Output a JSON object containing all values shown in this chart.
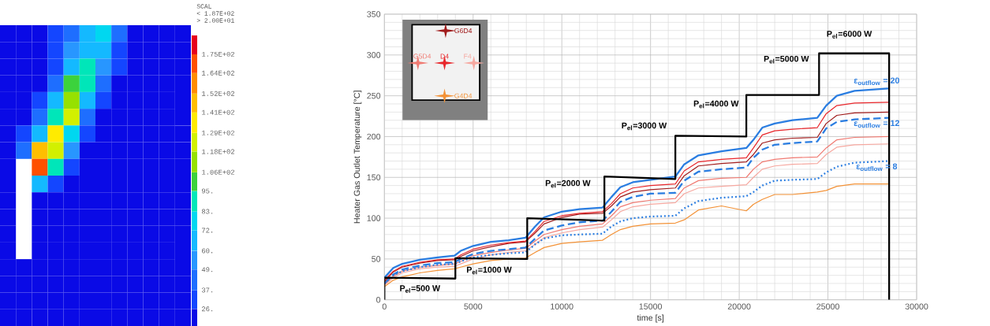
{
  "chart_data": [
    {
      "type": "heatmap",
      "clabel": "SCAL",
      "annotations": [
        "< 1.87E+02",
        "> 2.00E+01"
      ],
      "categories": [
        null,
        null,
        null,
        null,
        null,
        null,
        null,
        null,
        null,
        null,
        null,
        null
      ],
      "y_categories": [
        null,
        null,
        null,
        null,
        null,
        null,
        null,
        null,
        null,
        null,
        null,
        null,
        null,
        null,
        null,
        null,
        null,
        null
      ],
      "cells": [
        [
          20,
          20,
          20,
          28,
          40,
          60,
          72,
          40,
          20,
          20,
          20,
          20
        ],
        [
          20,
          20,
          20,
          30,
          50,
          70,
          60,
          35,
          20,
          20,
          20,
          20
        ],
        [
          20,
          20,
          20,
          35,
          60,
          90,
          55,
          30,
          20,
          20,
          20,
          20
        ],
        [
          20,
          20,
          25,
          45,
          95,
          85,
          45,
          25,
          20,
          20,
          20,
          20
        ],
        [
          20,
          20,
          35,
          60,
          115,
          60,
          30,
          20,
          20,
          20,
          20,
          20
        ],
        [
          20,
          20,
          45,
          90,
          120,
          45,
          25,
          20,
          20,
          20,
          20,
          20
        ],
        [
          20,
          30,
          70,
          135,
          80,
          30,
          20,
          20,
          20,
          20,
          20,
          20
        ],
        [
          20,
          45,
          150,
          120,
          50,
          25,
          20,
          20,
          20,
          20,
          20,
          20
        ],
        [
          20,
          null,
          170,
          90,
          35,
          20,
          20,
          20,
          20,
          20,
          20,
          20
        ],
        [
          20,
          null,
          60,
          30,
          20,
          20,
          20,
          20,
          20,
          20,
          20,
          20
        ],
        [
          20,
          null,
          20,
          20,
          20,
          20,
          20,
          20,
          20,
          20,
          20,
          20
        ],
        [
          20,
          null,
          20,
          20,
          20,
          20,
          20,
          20,
          20,
          20,
          20,
          20
        ],
        [
          20,
          null,
          20,
          20,
          20,
          20,
          20,
          20,
          20,
          20,
          20,
          20
        ],
        [
          20,
          null,
          20,
          20,
          20,
          20,
          20,
          20,
          20,
          20,
          20,
          20
        ],
        [
          20,
          20,
          20,
          20,
          20,
          20,
          20,
          20,
          20,
          20,
          20,
          20
        ],
        [
          20,
          20,
          20,
          20,
          20,
          20,
          20,
          20,
          20,
          20,
          20,
          20
        ],
        [
          20,
          20,
          20,
          20,
          20,
          20,
          20,
          20,
          20,
          20,
          20,
          20
        ],
        [
          20,
          20,
          20,
          20,
          20,
          20,
          20,
          20,
          20,
          20,
          20,
          20
        ]
      ],
      "clim": [
        16,
        186
      ],
      "cticks": [
        {
          "value": 26,
          "label": "26."
        },
        {
          "value": 37,
          "label": "37."
        },
        {
          "value": 49,
          "label": "49."
        },
        {
          "value": 60,
          "label": "60."
        },
        {
          "value": 72,
          "label": "72."
        },
        {
          "value": 83,
          "label": "83."
        },
        {
          "value": 95,
          "label": "95."
        },
        {
          "value": 106,
          "label": "1.06E+02"
        },
        {
          "value": 118,
          "label": "1.18E+02"
        },
        {
          "value": 129,
          "label": "1.29E+02"
        },
        {
          "value": 141,
          "label": "1.41E+02"
        },
        {
          "value": 152,
          "label": "1.52E+02"
        },
        {
          "value": 164,
          "label": "1.64E+02"
        },
        {
          "value": 175,
          "label": "1.75E+02"
        }
      ]
    },
    {
      "type": "line",
      "xlabel": "time [s]",
      "ylabel": "Heater Gas Outlet Temperature [°C]",
      "xlim": [
        0,
        30000
      ],
      "ylim": [
        0,
        350
      ],
      "xticks": [
        0,
        5000,
        10000,
        15000,
        20000,
        25000,
        30000
      ],
      "yticks": [
        0,
        50,
        100,
        150,
        200,
        250,
        300,
        350
      ],
      "grid": true,
      "legend": "top left",
      "x": [
        0,
        500,
        1000,
        2000,
        3000,
        3950,
        4300,
        5000,
        6000,
        7000,
        7950,
        8500,
        9000,
        10000,
        11000,
        12300,
        12800,
        13300,
        14000,
        15000,
        16400,
        16900,
        17700,
        19000,
        20400,
        20800,
        21300,
        22000,
        23000,
        24400,
        24900,
        25500,
        26500,
        28400
      ],
      "series": [
        {
          "name": "G4D4",
          "color": "#f39237",
          "values": [
            16,
            24,
            28,
            33,
            36,
            38,
            40,
            44,
            48,
            50,
            51,
            58,
            64,
            69,
            71,
            73,
            80,
            86,
            90,
            93,
            94,
            98,
            110,
            115,
            109,
            117,
            123,
            129,
            129,
            132,
            134,
            139,
            142,
            142
          ]
        },
        {
          "name": "F4",
          "color": "#f6a8a0",
          "values": [
            18,
            27,
            33,
            38,
            40,
            41,
            44,
            50,
            55,
            58,
            60,
            68,
            76,
            82,
            86,
            89,
            98,
            108,
            114,
            117,
            119,
            130,
            137,
            139,
            141,
            150,
            160,
            164,
            166,
            167,
            178,
            187,
            190,
            191
          ]
        },
        {
          "name": "G5D4",
          "color": "#f07a72",
          "values": [
            19,
            29,
            35,
            40,
            42,
            44,
            47,
            54,
            58,
            61,
            63,
            72,
            80,
            86,
            90,
            93,
            103,
            114,
            119,
            122,
            124,
            137,
            146,
            149,
            150,
            160,
            169,
            172,
            174,
            175,
            186,
            196,
            199,
            200
          ]
        },
        {
          "name": "ε$_{outflow}$ = 8",
          "color": "#2a7de1",
          "line_style": "dotted",
          "values": [
            20,
            30,
            35,
            40,
            43,
            44,
            47,
            52,
            55,
            57,
            58,
            68,
            75,
            79,
            80,
            81,
            90,
            96,
            100,
            102,
            103,
            112,
            121,
            125,
            127,
            132,
            140,
            146,
            147,
            148,
            156,
            163,
            168,
            170
          ]
        },
        {
          "name": "ε$_{outflow}$ = 12",
          "color": "#2a7de1",
          "line_style": "dashed",
          "values": [
            20,
            31,
            37,
            42,
            45,
            46,
            50,
            56,
            60,
            62,
            64,
            75,
            85,
            91,
            95,
            97,
            108,
            120,
            126,
            130,
            131,
            146,
            157,
            160,
            162,
            174,
            184,
            190,
            192,
            194,
            210,
            218,
            221,
            223
          ]
        },
        {
          "name": "G6D4",
          "color": "#a01c1c",
          "values": [
            22,
            34,
            40,
            45,
            48,
            49,
            53,
            60,
            65,
            69,
            71,
            82,
            93,
            101,
            105,
            106,
            115,
            126,
            132,
            135,
            137,
            152,
            164,
            167,
            169,
            178,
            192,
            196,
            198,
            199,
            216,
            226,
            229,
            230
          ]
        },
        {
          "name": "D4",
          "color": "#e8262b",
          "values": [
            24,
            35,
            41,
            46,
            49,
            50,
            55,
            62,
            67,
            70,
            72,
            84,
            96,
            103,
            106,
            108,
            118,
            130,
            137,
            140,
            142,
            158,
            169,
            172,
            174,
            186,
            202,
            207,
            209,
            211,
            228,
            238,
            241,
            242
          ]
        },
        {
          "name": "ε$_{outflow}$ = 20",
          "color": "#2a7de1",
          "line_style": "solid",
          "values": [
            27,
            39,
            44,
            49,
            52,
            54,
            60,
            66,
            71,
            73,
            76,
            90,
            101,
            108,
            111,
            113,
            126,
            138,
            144,
            147,
            151,
            166,
            177,
            182,
            186,
            196,
            211,
            216,
            220,
            223,
            238,
            250,
            256,
            259
          ]
        },
        {
          "color": "#000000",
          "line_style": "solid",
          "x": [
            0,
            0,
            4000,
            4000,
            8050,
            8050,
            12400,
            12400,
            16400,
            16400,
            20400,
            20400,
            24500,
            24500,
            28450,
            28450
          ],
          "values": [
            0,
            27,
            26,
            51,
            50,
            100,
            97,
            151,
            148,
            201,
            200,
            251,
            251,
            302,
            302,
            0
          ]
        }
      ],
      "annotations": [
        {
          "text": "P$_{el}$=500 W",
          "x": 2000,
          "y": 26
        },
        {
          "text": "P$_{el}$=1000 W",
          "x": 5900,
          "y": 50
        },
        {
          "text": "P$_{el}$=2000 W",
          "x": 12400,
          "y": 151
        },
        {
          "text": "P$_{el}$=3000 W",
          "x": 16400,
          "y": 201
        },
        {
          "text": "P$_{el}$=4000 W",
          "x": 20400,
          "y": 251
        },
        {
          "text": "P$_{el}$=5000 W",
          "x": 24500,
          "y": 302
        },
        {
          "text": "P$_{el}$=6000 W",
          "x": 26200,
          "y": 302
        }
      ]
    }
  ]
}
